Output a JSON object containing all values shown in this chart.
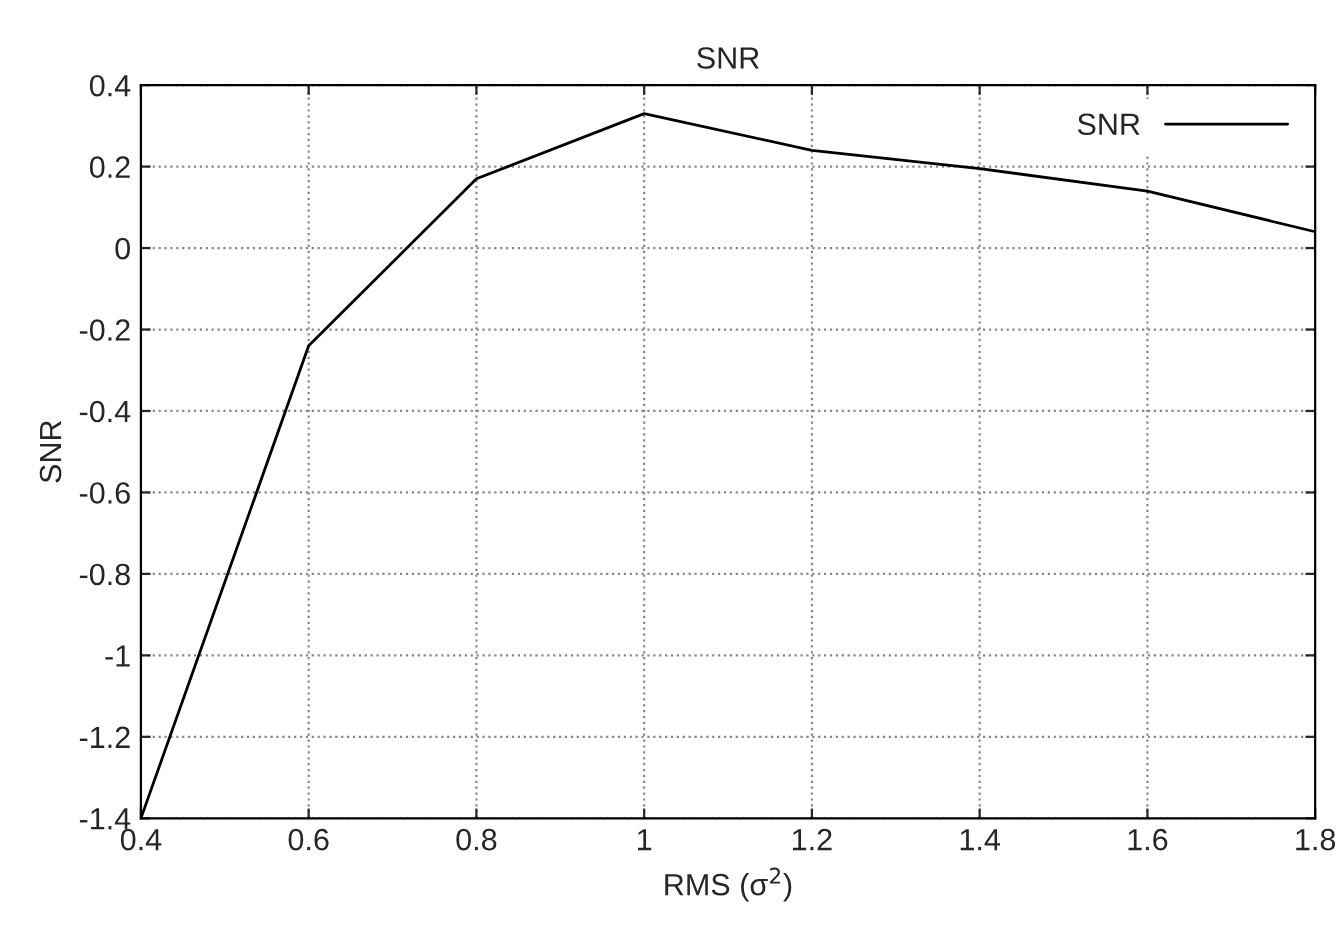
{
  "chart_data": {
    "type": "line",
    "title": "SNR",
    "xlabel": "RMS (σ$^{2}$)",
    "ylabel": "SNR",
    "x": [
      0.4,
      0.6,
      0.8,
      1.0,
      1.2,
      1.4,
      1.6,
      1.8
    ],
    "series": [
      {
        "name": "SNR",
        "color": "#000000",
        "values": [
          -1.4,
          -0.24,
          0.17,
          0.33,
          0.24,
          0.195,
          0.14,
          0.04
        ]
      }
    ],
    "xlim": [
      0.4,
      1.8
    ],
    "xticks": [
      0.4,
      0.6,
      0.8,
      {
        "value": 1.0,
        "label": "1"
      },
      1.2,
      1.4,
      1.6,
      1.8
    ],
    "ylim": [
      -1.4,
      0.4
    ],
    "yticks": [
      -1.4,
      -1.2,
      {
        "value": -1.0,
        "label": "-1"
      },
      -0.8,
      -0.6,
      -0.4,
      -0.2,
      0,
      0.2,
      0.4
    ],
    "grid": true,
    "legend": "top right",
    "line_style": "solid",
    "marker": "none"
  }
}
